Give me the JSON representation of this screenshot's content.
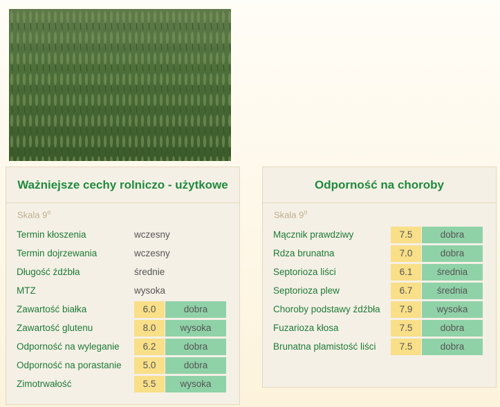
{
  "left": {
    "title": "Ważniejsze cechy rolniczo - użytkowe",
    "scale": "Skala 9",
    "scale_sup": "o",
    "rows": [
      {
        "label": "Termin kłoszenia",
        "value": "wczesny"
      },
      {
        "label": "Termin dojrzewania",
        "value": "wczesny"
      },
      {
        "label": "Długość źdźbła",
        "value": "średnie"
      },
      {
        "label": "MTZ",
        "value": "wysoka"
      },
      {
        "label": "Zawartość białka",
        "score": "6.0",
        "rating": "dobra"
      },
      {
        "label": "Zawartość glutenu",
        "score": "8.0",
        "rating": "wysoka"
      },
      {
        "label": "Odporność na wyleganie",
        "score": "6.2",
        "rating": "dobra"
      },
      {
        "label": "Odporność na porastanie",
        "score": "5.0",
        "rating": "dobra"
      },
      {
        "label": "Zimotrwałość",
        "score": "5.5",
        "rating": "wysoka"
      }
    ]
  },
  "right": {
    "title": "Odporność na choroby",
    "scale": "Skala 9",
    "scale_sup": "o",
    "rows": [
      {
        "label": "Mącznik prawdziwy",
        "score": "7.5",
        "rating": "dobra"
      },
      {
        "label": "Rdza brunatna",
        "score": "7.0",
        "rating": "dobra"
      },
      {
        "label": "Septorioza liści",
        "score": "6.1",
        "rating": "średnia"
      },
      {
        "label": "Septorioza plew",
        "score": "6.7",
        "rating": "średnia"
      },
      {
        "label": "Choroby podstawy źdźbła",
        "score": "7.9",
        "rating": "wysoka"
      },
      {
        "label": "Fuzarioza kłosa",
        "score": "7.5",
        "rating": "dobra"
      },
      {
        "label": "Brunatna plamistość liści",
        "score": "7.5",
        "rating": "dobra"
      }
    ]
  }
}
